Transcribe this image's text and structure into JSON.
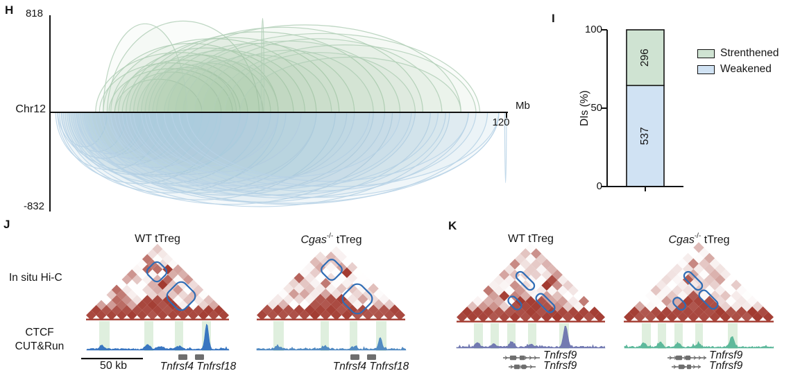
{
  "panels": {
    "H": {
      "label": "H",
      "y_max_label": "818",
      "y_min_label": "-832",
      "chrom_label": "Chr12",
      "x_unit_label": "Mb",
      "x_end_label": "120"
    },
    "I": {
      "label": "I",
      "tick_top": "100",
      "tick_mid": "50",
      "tick_bottom": "0",
      "y_axis_label": "DIs (%)",
      "strengthened_count": "296",
      "weakened_count": "537",
      "legend": {
        "strengthened_label": "Strenthened",
        "weakened_label": "Weakened"
      }
    },
    "J": {
      "label": "J",
      "wt_title": "WT tTreg",
      "cgas_title_gene": "Cgas",
      "cgas_title_sup": "-/-",
      "cgas_title_rest": " tTreg",
      "row_label_hic": "In situ Hi-C",
      "row_label_ctcf_line1": "CTCF",
      "row_label_ctcf_line2": "CUT&Run",
      "scale_bar_label": "50 kb",
      "wt_genes_label": "Tnfrsf4 Tnfrsf18",
      "cgas_genes_label": "Tnfrsf4 Tnfrsf18"
    },
    "K": {
      "label": "K",
      "wt_title": "WT tTreg",
      "cgas_title_gene": "Cgas",
      "cgas_title_sup": "-/-",
      "cgas_title_rest": " tTreg",
      "wt_gene_top_label": "Tnfrsf9",
      "wt_gene_bottom_label": "Tnfrsf9",
      "cgas_gene_top_label": "Tnfrsf9",
      "cgas_gene_bottom_label": "Tnfrsf9"
    }
  },
  "colors": {
    "strengthened_fill": "#cfe3d2",
    "weakened_fill": "#d0e2f3",
    "arc_strengthened_stroke": "#b2cfb7",
    "arc_weakened_stroke": "#b7d2e6",
    "hic_dark_red": "#a23a30",
    "loop_outline": "#2e6cb5",
    "band_green": "#dcedda",
    "track_j_wt": "#2f6fbe",
    "track_j_cgas": "#4a85c0",
    "track_k_wt": "#6b73ae",
    "track_k_cgas": "#56b597",
    "gene_gray": "#6e6e6e"
  },
  "chart_data": [
    {
      "type": "line",
      "variant": "arc-diagram",
      "title": "Differential interactions arc plot",
      "xlabel": "Mb",
      "chromosome": "Chr12",
      "xlim": [
        0,
        120
      ],
      "ylim": [
        -832,
        818
      ],
      "y_max_shown": 818,
      "y_min_shown": -832,
      "legend_position": "none",
      "grid": false,
      "arcs_note": "each arc = [start_Mb, end_Mb, height_value]; strengthened drawn above axis, weakened below",
      "arcs": {
        "strengthened": [
          [
            12,
            56,
            520
          ],
          [
            13,
            50,
            430
          ],
          [
            14,
            60,
            600
          ],
          [
            15,
            55,
            818
          ],
          [
            15.5,
            48,
            380
          ],
          [
            16,
            70,
            640
          ],
          [
            17,
            52,
            470
          ],
          [
            17,
            40,
            300
          ],
          [
            18,
            64,
            560
          ],
          [
            19,
            45,
            350
          ],
          [
            20,
            76,
            650
          ],
          [
            21,
            58,
            500
          ],
          [
            22,
            88,
            700
          ],
          [
            23,
            49,
            390
          ],
          [
            24,
            98,
            740
          ],
          [
            25,
            67,
            540
          ],
          [
            26,
            108,
            760
          ],
          [
            27,
            56,
            430
          ],
          [
            28,
            80,
            600
          ],
          [
            30,
            113,
            700
          ],
          [
            31,
            60,
            450
          ],
          [
            33,
            92,
            620
          ],
          [
            35,
            74,
            500
          ],
          [
            38,
            103,
            640
          ],
          [
            40,
            85,
            540
          ],
          [
            43,
            112,
            600
          ],
          [
            46,
            96,
            520
          ],
          [
            50,
            108,
            480
          ],
          [
            55.5,
            56.3,
            818
          ],
          [
            14,
            36,
            770
          ]
        ],
        "weakened": [
          [
            1.5,
            30,
            500
          ],
          [
            2,
            45,
            620
          ],
          [
            2,
            52,
            560
          ],
          [
            2.5,
            60,
            700
          ],
          [
            3,
            25,
            400
          ],
          [
            3,
            15,
            300
          ],
          [
            3.5,
            75,
            760
          ],
          [
            4,
            40,
            540
          ],
          [
            4.5,
            90,
            800
          ],
          [
            5,
            55,
            620
          ],
          [
            5,
            20,
            340
          ],
          [
            5.5,
            105,
            820
          ],
          [
            6,
            35,
            460
          ],
          [
            6.5,
            70,
            700
          ],
          [
            7,
            118,
            790
          ],
          [
            7,
            24,
            360
          ],
          [
            7.5,
            50,
            560
          ],
          [
            8,
            85,
            720
          ],
          [
            8.5,
            28,
            380
          ],
          [
            9,
            100,
            780
          ],
          [
            9,
            33,
            400
          ],
          [
            9.5,
            62,
            640
          ],
          [
            10,
            115,
            800
          ],
          [
            11,
            44,
            480
          ],
          [
            11,
            38,
            420
          ],
          [
            12,
            78,
            680
          ],
          [
            13,
            96,
            740
          ],
          [
            14,
            58,
            540
          ],
          [
            15,
            110,
            760
          ],
          [
            16,
            70,
            620
          ],
          [
            16,
            42,
            400
          ],
          [
            17,
            88,
            700
          ],
          [
            18,
            52,
            460
          ],
          [
            19,
            104,
            720
          ],
          [
            20,
            80,
            640
          ],
          [
            21,
            118,
            740
          ],
          [
            22,
            66,
            520
          ],
          [
            24,
            95,
            680
          ],
          [
            25,
            60,
            480
          ],
          [
            26,
            112,
            700
          ],
          [
            28,
            84,
            580
          ],
          [
            30,
            102,
            640
          ],
          [
            32,
            118,
            660
          ],
          [
            34,
            92,
            560
          ],
          [
            36,
            110,
            600
          ],
          [
            119.5,
            120,
            832
          ]
        ]
      }
    },
    {
      "type": "bar",
      "stacked": true,
      "categories": [
        ""
      ],
      "series": [
        {
          "name": "Strenthened",
          "values": [
            296
          ],
          "color": "#cfe3d2"
        },
        {
          "name": "Weakened",
          "values": [
            537
          ],
          "color": "#d0e2f3"
        }
      ],
      "title": "",
      "xlabel": "",
      "ylabel": "DIs (%)",
      "ylim": [
        0,
        100
      ],
      "yticks": [
        0,
        50,
        100
      ],
      "legend_position": "right",
      "bar_value_labels": [
        "296",
        "537"
      ]
    }
  ]
}
